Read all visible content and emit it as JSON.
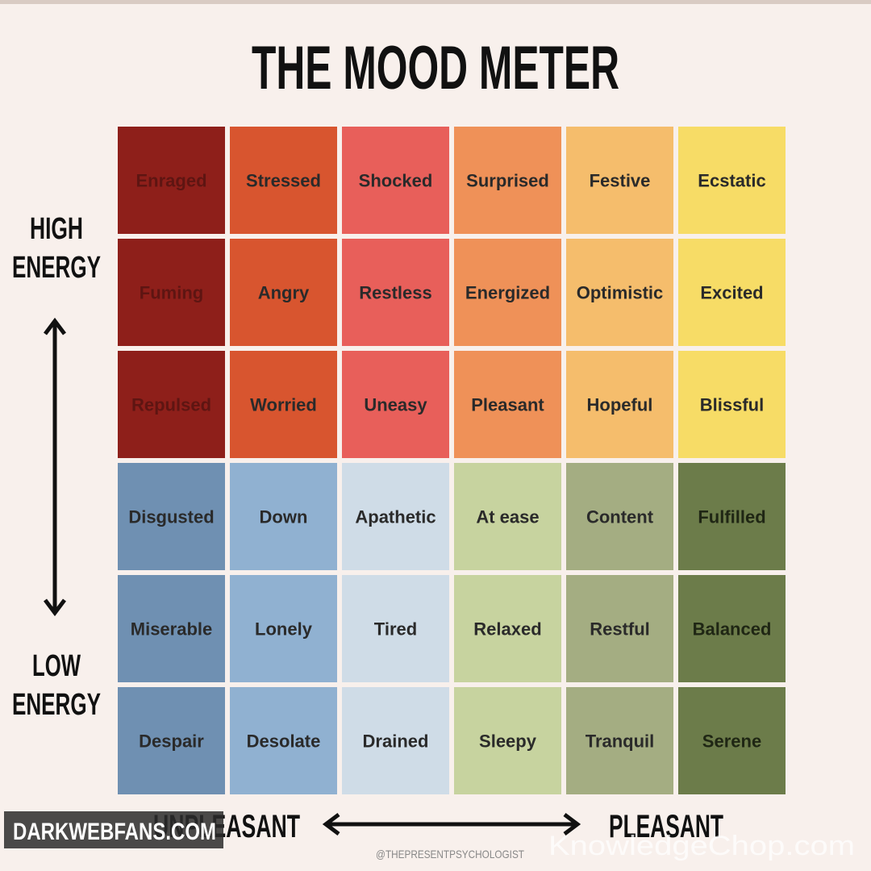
{
  "title": "THE MOOD METER",
  "high_energy": [
    "HIGH",
    "ENERGY"
  ],
  "low_energy": [
    "LOW",
    "ENERGY"
  ],
  "unpleasant": "UNPLEASANT",
  "pleasant": "PLEASANT",
  "credit": "@THEPRESENTPSYCHOLOGIST",
  "watermarks": [
    "DARKWEBFANS.COM",
    "KnowledgeChop.com"
  ],
  "grid": {
    "rows": [
      [
        "Enraged",
        "Stressed",
        "Shocked",
        "Surprised",
        "Festive",
        "Ecstatic"
      ],
      [
        "Fuming",
        "Angry",
        "Restless",
        "Energized",
        "Optimistic",
        "Excited"
      ],
      [
        "Repulsed",
        "Worried",
        "Uneasy",
        "Pleasant",
        "Hopeful",
        "Blissful"
      ],
      [
        "Disgusted",
        "Down",
        "Apathetic",
        "At ease",
        "Content",
        "Fulfilled"
      ],
      [
        "Miserable",
        "Lonely",
        "Tired",
        "Relaxed",
        "Restful",
        "Balanced"
      ],
      [
        "Despair",
        "Desolate",
        "Drained",
        "Sleepy",
        "Tranquil",
        "Serene"
      ]
    ]
  }
}
